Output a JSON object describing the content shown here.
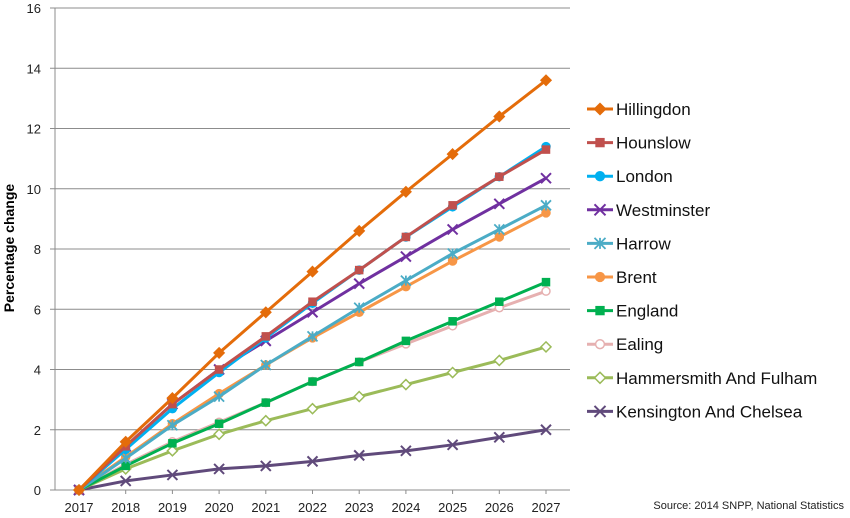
{
  "chart_data": {
    "type": "line",
    "title": "",
    "xlabel": "",
    "ylabel": "Percentage change",
    "ylim": [
      0,
      16
    ],
    "yticks": [
      0,
      2,
      4,
      6,
      8,
      10,
      12,
      14,
      16
    ],
    "grid": "horizontal",
    "legend_position": "right",
    "x": [
      "2017",
      "2018",
      "2019",
      "2020",
      "2021",
      "2022",
      "2023",
      "2024",
      "2025",
      "2026",
      "2027"
    ],
    "series": [
      {
        "name": "Hillingdon",
        "color": "#E46C0A",
        "marker": "diamond",
        "values": [
          0,
          1.6,
          3.05,
          4.55,
          5.9,
          7.25,
          8.6,
          9.9,
          11.15,
          12.4,
          13.6
        ]
      },
      {
        "name": "Hounslow",
        "color": "#C0504D",
        "marker": "square",
        "values": [
          0,
          1.45,
          2.85,
          4.0,
          5.1,
          6.25,
          7.3,
          8.4,
          9.45,
          10.4,
          11.3
        ]
      },
      {
        "name": "London",
        "color": "#00B0F0",
        "marker": "circle",
        "values": [
          0,
          1.35,
          2.7,
          3.9,
          5.05,
          6.2,
          7.3,
          8.4,
          9.4,
          10.4,
          11.4
        ]
      },
      {
        "name": "Westminster",
        "color": "#7030A0",
        "marker": "x",
        "values": [
          0,
          1.45,
          2.85,
          4.0,
          4.95,
          5.9,
          6.85,
          7.75,
          8.65,
          9.5,
          10.35
        ]
      },
      {
        "name": "Harrow",
        "color": "#4BACC6",
        "marker": "asterisk",
        "values": [
          0,
          1.05,
          2.15,
          3.1,
          4.15,
          5.1,
          6.05,
          6.95,
          7.85,
          8.65,
          9.45
        ]
      },
      {
        "name": "Brent",
        "color": "#F79646",
        "marker": "circle",
        "values": [
          0,
          1.1,
          2.2,
          3.2,
          4.15,
          5.05,
          5.9,
          6.75,
          7.6,
          8.4,
          9.2
        ]
      },
      {
        "name": "England",
        "color": "#00B050",
        "marker": "square",
        "values": [
          0,
          0.8,
          1.55,
          2.2,
          2.9,
          3.6,
          4.25,
          4.95,
          5.6,
          6.25,
          6.9
        ]
      },
      {
        "name": "Ealing",
        "color": "#E6B0B0",
        "marker": "circle-open",
        "values": [
          0,
          0.85,
          1.6,
          2.25,
          2.9,
          3.6,
          4.25,
          4.85,
          5.45,
          6.05,
          6.6
        ]
      },
      {
        "name": "Hammersmith And Fulham",
        "color": "#9BBB59",
        "marker": "diamond-open",
        "values": [
          0,
          0.7,
          1.3,
          1.85,
          2.3,
          2.7,
          3.1,
          3.5,
          3.9,
          4.3,
          4.75
        ]
      },
      {
        "name": "Kensington And Chelsea",
        "color": "#604A7B",
        "marker": "x",
        "values": [
          0,
          0.3,
          0.5,
          0.7,
          0.8,
          0.95,
          1.15,
          1.3,
          1.5,
          1.75,
          2.0
        ]
      }
    ]
  },
  "source_note": "Source: 2014 SNPP, National Statistics"
}
